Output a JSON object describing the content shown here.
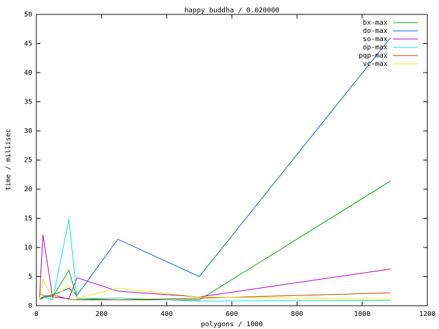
{
  "chart_data": {
    "type": "line",
    "title": "happy buddha / 0.020000",
    "x_label": "polygons / 1000",
    "y_label": "time / millisec",
    "x": [
      10,
      20,
      50,
      100,
      125,
      250,
      500,
      1087
    ],
    "xlim": [
      0,
      1200
    ],
    "xticks": [
      0,
      200,
      400,
      600,
      800,
      1000,
      1200
    ],
    "ylim": [
      0,
      50
    ],
    "yticks": [
      0,
      5,
      10,
      15,
      20,
      25,
      30,
      35,
      40,
      45,
      50
    ],
    "legend": "top-right",
    "series": [
      {
        "name": "bx-max",
        "color": "#00a000",
        "values": [
          2.1,
          1.8,
          1.5,
          6.1,
          1.2,
          1.0,
          1.0,
          21.4
        ]
      },
      {
        "name": "do-max",
        "color": "#0060e0",
        "values": [
          1.0,
          1.3,
          1.8,
          3.0,
          1.8,
          11.4,
          5.0,
          46
        ]
      },
      {
        "name": "so-max",
        "color": "#a000d0",
        "values": [
          1.5,
          12.2,
          1.5,
          1.2,
          4.8,
          2.5,
          1.5,
          6.3
        ]
      },
      {
        "name": "op-max",
        "color": "#00e0e0",
        "values": [
          1.0,
          1.5,
          1.0,
          14.9,
          1.2,
          1.3,
          0.8,
          0.9
        ]
      },
      {
        "name": "pqp-max",
        "color": "#c04000",
        "values": [
          1.2,
          1.5,
          1.9,
          1.1,
          1.0,
          1.0,
          1.3,
          2.2
        ]
      },
      {
        "name": "vc-max",
        "color": "#eeee00",
        "values": [
          1.0,
          4.5,
          1.2,
          3.5,
          1.3,
          3.0,
          1.5,
          1.1
        ]
      }
    ]
  }
}
